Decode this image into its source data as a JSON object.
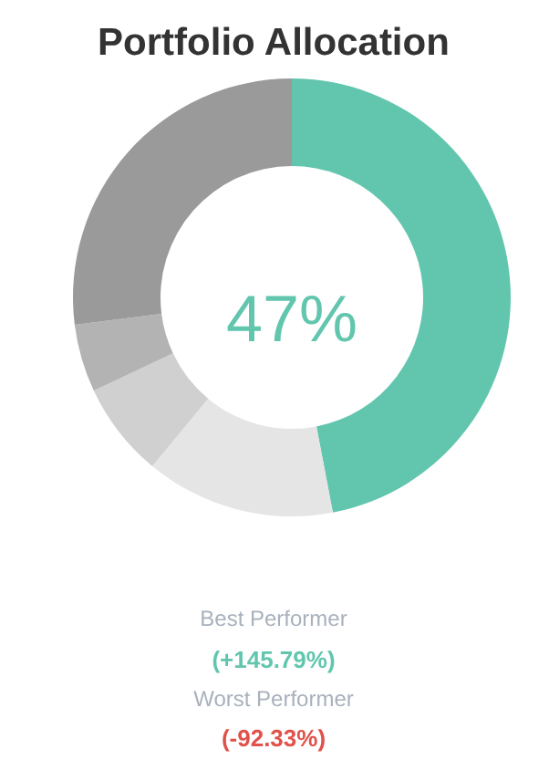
{
  "chart_data": {
    "type": "donut",
    "title": "Portfolio Allocation",
    "categories": [
      null,
      null,
      null,
      null,
      null
    ],
    "values": [
      47,
      14,
      7,
      5,
      27
    ],
    "colors": [
      "#62c6ae",
      "#e5e5e5",
      "#d0d0d0",
      "#b3b3b3",
      "#9a9a9a"
    ],
    "annotations": [
      "47%",
      "Best Performer",
      "(+145.79%)",
      "Worst Performer",
      "(-92.33%)"
    ]
  }
}
